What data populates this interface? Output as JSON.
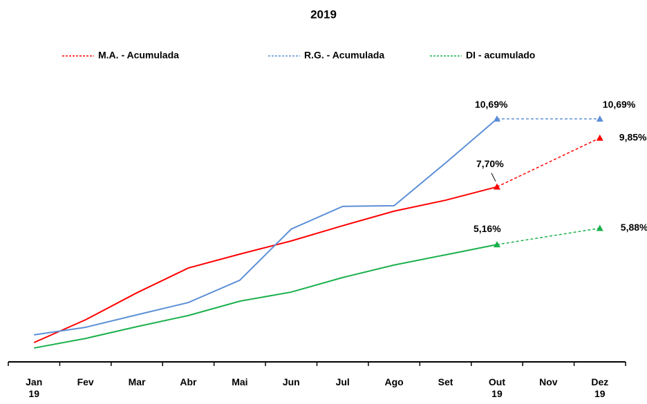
{
  "chart_data": {
    "type": "line",
    "title": "2019",
    "categories": [
      "Jan 19",
      "Fev",
      "Mar",
      "Abr",
      "Mai",
      "Jun",
      "Jul",
      "Ago",
      "Set",
      "Out 19",
      "Nov",
      "Dez 19"
    ],
    "series": [
      {
        "name": "M.A. - Acumulada",
        "color": "#ff0000",
        "values": [
          0.85,
          1.85,
          3.04,
          4.13,
          4.74,
          5.32,
          5.99,
          6.63,
          7.11,
          7.7,
          null,
          9.85
        ],
        "value_labels": [
          null,
          null,
          null,
          null,
          null,
          null,
          null,
          null,
          null,
          "7,70%",
          null,
          "9,85%"
        ]
      },
      {
        "name": "R.G. - Acumulada",
        "color": "#5b8fd6",
        "values": [
          1.19,
          1.52,
          2.07,
          2.61,
          3.59,
          5.84,
          6.84,
          6.87,
          8.75,
          10.69,
          null,
          10.69
        ],
        "value_labels": [
          null,
          null,
          null,
          null,
          null,
          null,
          null,
          null,
          null,
          "10,69%",
          null,
          "10,69%"
        ]
      },
      {
        "name": "DI - acumulado",
        "color": "#19b04b",
        "values": [
          0.61,
          1.03,
          1.55,
          2.04,
          2.67,
          3.07,
          3.71,
          4.26,
          4.71,
          5.16,
          null,
          5.88
        ],
        "value_labels": [
          null,
          null,
          null,
          null,
          null,
          null,
          null,
          null,
          null,
          "5,16%",
          null,
          "5,88%"
        ]
      }
    ],
    "ylim": [
      0,
      12
    ],
    "grid": false
  }
}
